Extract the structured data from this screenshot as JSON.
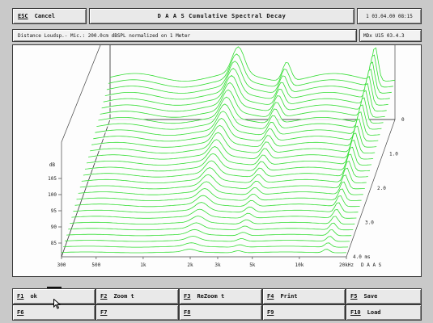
{
  "header": {
    "esc_key": "ESC",
    "esc_label": "Cancel",
    "title": "D A A S   Cumulative Spectral Decay",
    "datetime": "1 03.04.00 08:15"
  },
  "info": {
    "description": "Distance Loudsp.- Mic.: 200.0cm dBSPL normalized on 1 Meter",
    "version": "MDx U15 03.4.3"
  },
  "chart_data": {
    "type": "waterfall",
    "title": "",
    "y_unit": "dB",
    "y_ticks": [
      "105",
      "100",
      "95",
      "90",
      "85"
    ],
    "x_ticks": [
      "300",
      "500",
      "1k",
      "2k",
      "3k",
      "5k",
      "10k",
      "20kHz"
    ],
    "time_unit": "ms",
    "time_ticks": [
      "0",
      "1.0",
      "2.0",
      "3.0",
      "4.0 ms"
    ],
    "brand": "D A A S",
    "line_color": "#33dd33",
    "slices": 30
  },
  "fkeys": [
    {
      "key": "F1",
      "label": "ok"
    },
    {
      "key": "F2",
      "label": "Zoom t"
    },
    {
      "key": "F3",
      "label": "ReZoom t"
    },
    {
      "key": "F4",
      "label": "Print"
    },
    {
      "key": "F5",
      "label": "Save"
    },
    {
      "key": "F6",
      "label": ""
    },
    {
      "key": "F7",
      "label": ""
    },
    {
      "key": "F8",
      "label": ""
    },
    {
      "key": "F9",
      "label": ""
    },
    {
      "key": "F10",
      "label": "Load"
    }
  ]
}
